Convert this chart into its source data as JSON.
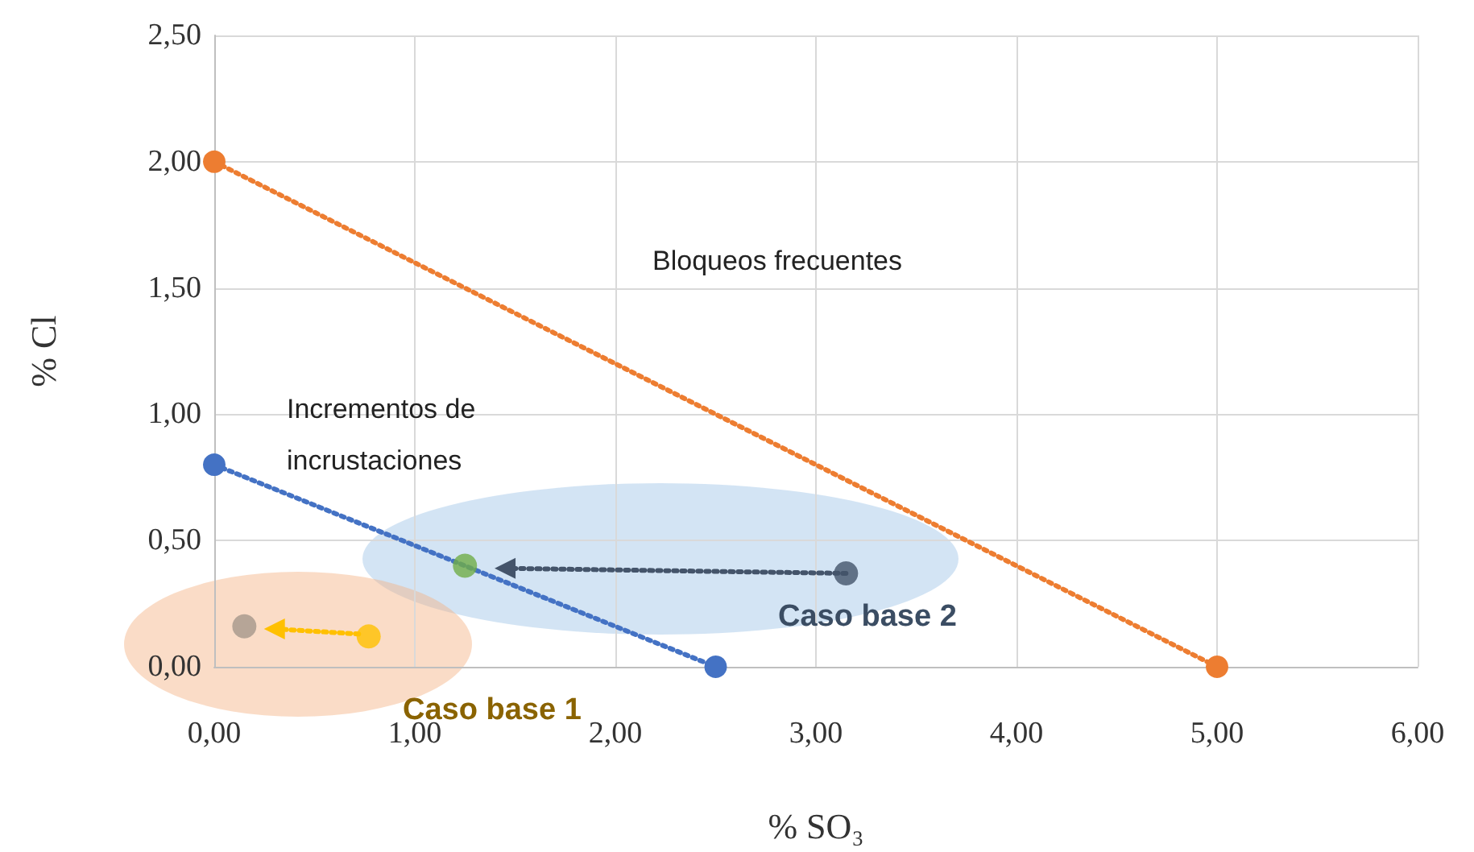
{
  "chart_data": {
    "type": "scatter",
    "xlabel": "% SO₃",
    "ylabel": "% Cl",
    "xlim": [
      0,
      6
    ],
    "xticks": [
      {
        "value": 0,
        "label": "0,00"
      },
      {
        "value": 1,
        "label": "1,00"
      },
      {
        "value": 2,
        "label": "2,00"
      },
      {
        "value": 3,
        "label": "3,00"
      },
      {
        "value": 4,
        "label": "4,00"
      },
      {
        "value": 5,
        "label": "5,00"
      },
      {
        "value": 6,
        "label": "6,00"
      }
    ],
    "ylim": [
      0,
      2.5
    ],
    "yticks": [
      {
        "value": 0,
        "label": "0,00"
      },
      {
        "value": 0.5,
        "label": "0,50"
      },
      {
        "value": 1,
        "label": "1,00"
      },
      {
        "value": 1.5,
        "label": "1,50"
      },
      {
        "value": 2,
        "label": "2,00"
      },
      {
        "value": 2.5,
        "label": "2,50"
      }
    ],
    "grid": true,
    "annotations": [
      "Bloqueos frecuentes",
      "Incrementos de\nincrustaciones",
      "Caso base 2",
      "Caso base 1"
    ],
    "series": [
      {
        "type": "line",
        "x": [
          0,
          5
        ],
        "values": [
          2.0,
          0
        ],
        "color": "#ed7d31",
        "marker": "circle",
        "line_style": "dotted"
      },
      {
        "type": "line",
        "x": [
          0,
          2.5
        ],
        "values": [
          0.8,
          0
        ],
        "color": "#4472c4",
        "marker": "circle",
        "line_style": "dotted"
      },
      {
        "type": "line",
        "x": [
          3.15,
          1.45
        ],
        "values": [
          0.37,
          0.39
        ],
        "color": "#44546a",
        "marker": "triangle",
        "line_style": "dotted"
      },
      {
        "type": "line",
        "x": [
          0.72,
          0.3
        ],
        "values": [
          0.13,
          0.15
        ],
        "color": "#ffc000",
        "marker": "triangle",
        "line_style": "dotted"
      },
      {
        "x": [
          1.25
        ],
        "values": [
          0.4
        ],
        "color": "#70ad47",
        "marker": "circle"
      },
      {
        "x": [
          3.15
        ],
        "values": [
          0.37
        ],
        "color": "#44546a",
        "marker": "circle"
      },
      {
        "x": [
          0.15
        ],
        "values": [
          0.16
        ],
        "color": "#a5978b",
        "marker": "circle"
      },
      {
        "x": [
          0.77
        ],
        "values": [
          0.12
        ],
        "color": "#ffc000",
        "marker": "circle"
      }
    ]
  }
}
